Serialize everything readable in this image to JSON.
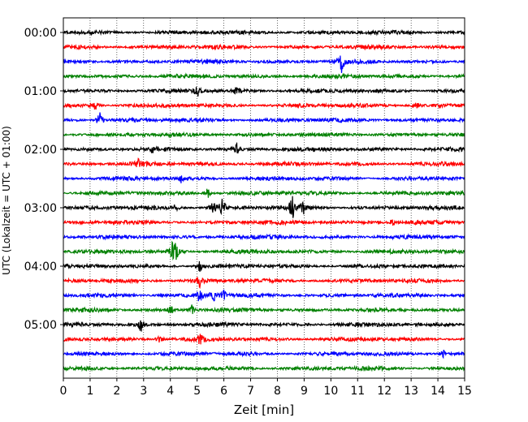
{
  "chart_data": {
    "type": "line",
    "title": "",
    "xlabel": "Zeit  [min]",
    "ylabel": "UTC (Lokalzeit = UTC + 01:00)",
    "xlim": [
      0,
      15
    ],
    "xticks": [
      0,
      1,
      2,
      3,
      4,
      5,
      6,
      7,
      8,
      9,
      10,
      11,
      12,
      13,
      14,
      15
    ],
    "ytick_labels": [
      "00:00",
      "01:00",
      "02:00",
      "03:00",
      "04:00",
      "05:00"
    ],
    "grid": "vertical dotted lines at each minute",
    "trace_colors": [
      "#000000",
      "#ff0000",
      "#0000ff",
      "#008000"
    ],
    "trace_interval_min": 15,
    "series": [
      {
        "start": "00:00",
        "color": "#000000",
        "events": []
      },
      {
        "start": "00:15",
        "color": "#ff0000",
        "events": []
      },
      {
        "start": "00:30",
        "color": "#0000ff",
        "events": [
          {
            "t": 10.4,
            "amp": 1.0
          }
        ]
      },
      {
        "start": "00:45",
        "color": "#008000",
        "events": []
      },
      {
        "start": "01:00",
        "color": "#000000",
        "events": [
          {
            "t": 5.0,
            "amp": 0.7
          },
          {
            "t": 6.5,
            "amp": 0.5
          }
        ]
      },
      {
        "start": "01:15",
        "color": "#ff0000",
        "events": [
          {
            "t": 1.2,
            "amp": 0.5
          },
          {
            "t": 13.2,
            "amp": 0.4
          }
        ]
      },
      {
        "start": "01:30",
        "color": "#0000ff",
        "events": [
          {
            "t": 1.35,
            "amp": 0.9
          }
        ]
      },
      {
        "start": "01:45",
        "color": "#008000",
        "events": []
      },
      {
        "start": "02:00",
        "color": "#000000",
        "events": [
          {
            "t": 6.5,
            "amp": 0.8
          },
          {
            "t": 3.3,
            "amp": 0.4
          }
        ]
      },
      {
        "start": "02:15",
        "color": "#ff0000",
        "events": [
          {
            "t": 2.8,
            "amp": 0.4
          }
        ]
      },
      {
        "start": "02:30",
        "color": "#0000ff",
        "events": [
          {
            "t": 4.4,
            "amp": 0.5
          }
        ]
      },
      {
        "start": "02:45",
        "color": "#008000",
        "events": [
          {
            "t": 5.4,
            "amp": 0.7
          }
        ]
      },
      {
        "start": "03:00",
        "color": "#000000",
        "events": [
          {
            "t": 5.6,
            "amp": 0.9
          },
          {
            "t": 5.95,
            "amp": 1.3
          },
          {
            "t": 8.55,
            "amp": 1.4
          },
          {
            "t": 8.95,
            "amp": 0.8
          },
          {
            "t": 4.2,
            "amp": 0.4
          }
        ]
      },
      {
        "start": "03:15",
        "color": "#ff0000",
        "events": [
          {
            "t": 12.3,
            "amp": 0.4
          }
        ]
      },
      {
        "start": "03:30",
        "color": "#0000ff",
        "events": []
      },
      {
        "start": "03:45",
        "color": "#008000",
        "events": [
          {
            "t": 4.05,
            "amp": 1.0
          },
          {
            "t": 4.2,
            "amp": 1.1
          }
        ]
      },
      {
        "start": "04:00",
        "color": "#000000",
        "events": [
          {
            "t": 5.1,
            "amp": 0.6
          }
        ]
      },
      {
        "start": "04:15",
        "color": "#ff0000",
        "events": [
          {
            "t": 5.1,
            "amp": 1.0
          }
        ]
      },
      {
        "start": "04:30",
        "color": "#0000ff",
        "events": [
          {
            "t": 5.1,
            "amp": 0.9
          },
          {
            "t": 5.6,
            "amp": 0.8
          },
          {
            "t": 6.0,
            "amp": 0.6
          }
        ]
      },
      {
        "start": "04:45",
        "color": "#008000",
        "events": [
          {
            "t": 4.0,
            "amp": 0.6
          },
          {
            "t": 4.8,
            "amp": 0.5
          }
        ]
      },
      {
        "start": "05:00",
        "color": "#000000",
        "events": [
          {
            "t": 2.9,
            "amp": 0.8
          }
        ]
      },
      {
        "start": "05:15",
        "color": "#ff0000",
        "events": [
          {
            "t": 3.6,
            "amp": 0.5
          },
          {
            "t": 5.1,
            "amp": 0.5
          }
        ]
      },
      {
        "start": "05:30",
        "color": "#0000ff",
        "events": [
          {
            "t": 14.2,
            "amp": 0.5
          }
        ]
      },
      {
        "start": "05:45",
        "color": "#008000",
        "events": []
      }
    ]
  }
}
